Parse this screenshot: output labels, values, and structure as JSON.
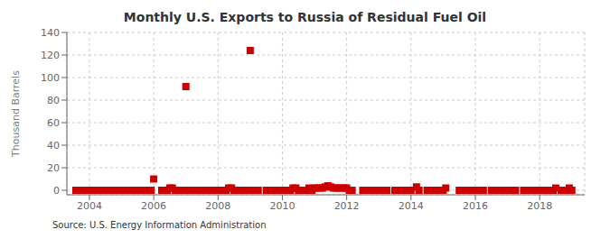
{
  "chart_data": {
    "type": "scatter",
    "title": "Monthly U.S. Exports to Russia of Residual Fuel Oil",
    "ylabel": "Thousand Barrels",
    "annotations": [
      "Source: U.S. Energy Information Administration"
    ],
    "xlim": [
      2003.3,
      2019.4
    ],
    "ylim": [
      -4,
      140
    ],
    "xticks": [
      2004,
      2006,
      2008,
      2010,
      2012,
      2014,
      2016,
      2018
    ],
    "yticks": [
      0,
      20,
      40,
      60,
      80,
      100,
      120,
      140
    ],
    "grid": true,
    "color": "#cc0000",
    "marker": "square",
    "x": [
      2003.58,
      2003.67,
      2003.75,
      2003.83,
      2003.92,
      2004.0,
      2004.08,
      2004.17,
      2004.25,
      2004.33,
      2004.42,
      2004.5,
      2004.58,
      2004.67,
      2004.75,
      2004.83,
      2004.92,
      2005.0,
      2005.08,
      2005.17,
      2005.25,
      2005.33,
      2005.42,
      2005.5,
      2005.67,
      2005.75,
      2005.83,
      2005.92,
      2006.0,
      2006.25,
      2006.33,
      2006.42,
      2006.5,
      2006.58,
      2006.67,
      2006.75,
      2006.83,
      2006.92,
      2007.0,
      2007.08,
      2007.17,
      2007.25,
      2007.33,
      2007.42,
      2007.5,
      2007.58,
      2007.67,
      2007.75,
      2007.83,
      2007.92,
      2008.0,
      2008.08,
      2008.17,
      2008.25,
      2008.33,
      2008.42,
      2008.5,
      2008.58,
      2008.67,
      2008.75,
      2008.83,
      2008.92,
      2009.0,
      2009.08,
      2009.17,
      2009.25,
      2009.5,
      2009.67,
      2009.75,
      2009.83,
      2009.92,
      2010.0,
      2010.08,
      2010.17,
      2010.25,
      2010.33,
      2010.42,
      2010.5,
      2010.58,
      2010.67,
      2010.75,
      2010.83,
      2010.92,
      2011.0,
      2011.08,
      2011.17,
      2011.25,
      2011.33,
      2011.42,
      2011.5,
      2011.58,
      2011.67,
      2011.75,
      2011.83,
      2011.92,
      2012.0,
      2012.08,
      2012.17,
      2012.5,
      2012.67,
      2012.75,
      2012.83,
      2012.92,
      2013.0,
      2013.08,
      2013.17,
      2013.25,
      2013.5,
      2013.67,
      2013.75,
      2013.83,
      2013.92,
      2014.0,
      2014.17,
      2014.25,
      2014.5,
      2014.67,
      2014.75,
      2014.83,
      2014.92,
      2015.0,
      2015.08,
      2015.5,
      2015.67,
      2015.75,
      2015.83,
      2015.92,
      2016.0,
      2016.08,
      2016.17,
      2016.25,
      2016.5,
      2016.67,
      2016.75,
      2016.83,
      2016.92,
      2017.0,
      2017.08,
      2017.17,
      2017.25,
      2017.5,
      2017.67,
      2017.75,
      2017.83,
      2017.92,
      2018.0,
      2018.08,
      2018.17,
      2018.25,
      2018.42,
      2018.5,
      2018.67,
      2018.75,
      2018.83,
      2018.92,
      2019.0
    ],
    "values": [
      0,
      0,
      0,
      0,
      0,
      0,
      0,
      0,
      0,
      0,
      0,
      0,
      0,
      0,
      0,
      0,
      0,
      0,
      0,
      0,
      0,
      0,
      0,
      0,
      0,
      0,
      0,
      0,
      10,
      0,
      0,
      0,
      2,
      2,
      0,
      0,
      0,
      0,
      92,
      0,
      0,
      0,
      0,
      0,
      0,
      0,
      0,
      0,
      0,
      0,
      0,
      0,
      0,
      0,
      2,
      2,
      0,
      0,
      0,
      0,
      0,
      0,
      124,
      0,
      0,
      0,
      0,
      0,
      0,
      0,
      0,
      0,
      0,
      0,
      0,
      2,
      2,
      0,
      0,
      0,
      0,
      2,
      0,
      2,
      2,
      2,
      2,
      3,
      4,
      3,
      2,
      2,
      2,
      2,
      2,
      2,
      0,
      0,
      0,
      0,
      0,
      0,
      0,
      0,
      0,
      0,
      0,
      0,
      0,
      0,
      0,
      0,
      0,
      3,
      0,
      0,
      0,
      0,
      0,
      0,
      0,
      2,
      0,
      0,
      0,
      0,
      0,
      0,
      0,
      0,
      0,
      0,
      0,
      0,
      0,
      0,
      0,
      0,
      0,
      0,
      0,
      0,
      0,
      0,
      0,
      0,
      0,
      0,
      0,
      0,
      2,
      0,
      0,
      0,
      2,
      0
    ]
  }
}
